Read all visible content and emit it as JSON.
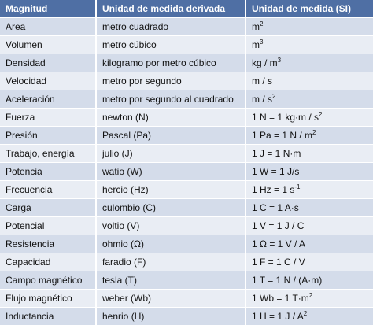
{
  "table": {
    "header": [
      "Magnitud",
      "Unidad de medida derivada",
      "Unidad de medida (SI)"
    ],
    "rows": [
      [
        "Area",
        "metro cuadrado",
        {
          "text": "m",
          "sup": "2"
        }
      ],
      [
        "Volumen",
        "metro cúbico",
        {
          "text": "m",
          "sup": "3"
        }
      ],
      [
        "Densidad",
        "kilogramo por metro cúbico",
        {
          "text": "kg / m",
          "sup": "3"
        }
      ],
      [
        "Velocidad",
        "metro por segundo",
        "m / s"
      ],
      [
        "Aceleración",
        "metro por segundo al cuadrado",
        {
          "text": "m / s",
          "sup": "2"
        }
      ],
      [
        "Fuerza",
        "newton (N)",
        {
          "text": "1 N = 1 kg·m / s",
          "sup": "2"
        }
      ],
      [
        "Presión",
        "Pascal (Pa)",
        {
          "text": "1 Pa = 1 N / m",
          "sup": "2"
        }
      ],
      [
        "Trabajo, energía",
        "julio (J)",
        "1 J = 1 N·m"
      ],
      [
        "Potencia",
        "watio (W)",
        "1 W = 1 J/s"
      ],
      [
        "Frecuencia",
        "hercio (Hz)",
        {
          "text": "1 Hz = 1 s",
          "sup": "-1"
        }
      ],
      [
        "Carga",
        "culombio (C)",
        "1 C = 1 A·s"
      ],
      [
        "Potencial",
        "voltio (V)",
        "1 V = 1 J / C"
      ],
      [
        "Resistencia",
        "ohmio (Ω)",
        "1 Ω = 1 V / A"
      ],
      [
        "Capacidad",
        "faradio (F)",
        "1 F = 1 C / V"
      ],
      [
        "Campo magnético",
        "tesla (T)",
        "1 T = 1 N / (A·m)"
      ],
      [
        "Flujo magnético",
        "weber (Wb)",
        {
          "text": "1 Wb = 1 T·m",
          "sup": "2"
        }
      ],
      [
        "Inductancia",
        "henrio (H)",
        {
          "text": "1 H = 1 J / A",
          "sup": "2"
        }
      ]
    ]
  }
}
